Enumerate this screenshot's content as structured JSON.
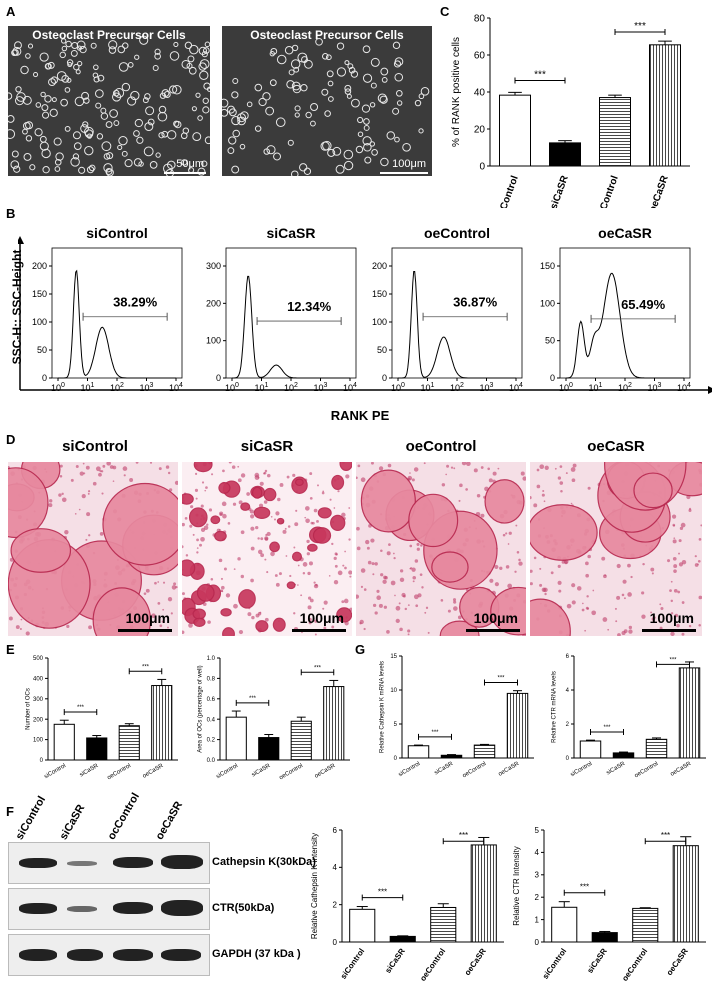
{
  "panels": {
    "A": "A",
    "B": "B",
    "C": "C",
    "D": "D",
    "E": "E",
    "F": "F",
    "G": "G"
  },
  "panelA": {
    "images": [
      {
        "title": "Osteoclast Precursor Cells",
        "scale": "50μm"
      },
      {
        "title": "Osteoclast Precursor Cells",
        "scale": "100μm"
      }
    ]
  },
  "panelB": {
    "y_label": "SSC-H:: SSC-Height",
    "x_label": "RANK PE",
    "plots": [
      {
        "title": "siControl",
        "percent": "38.29%",
        "yticks": [
          "0",
          "50",
          "100",
          "150",
          "200"
        ]
      },
      {
        "title": "siCaSR",
        "percent": "12.34%",
        "yticks": [
          "0",
          "100",
          "200",
          "300"
        ]
      },
      {
        "title": "oeControl",
        "percent": "36.87%",
        "yticks": [
          "0",
          "50",
          "100",
          "150",
          "200"
        ]
      },
      {
        "title": "oeCaSR",
        "percent": "65.49%",
        "yticks": [
          "0",
          "50",
          "100",
          "150"
        ]
      }
    ],
    "xtick_base": "10",
    "xtick_exps": [
      "0",
      "1",
      "2",
      "3",
      "4"
    ]
  },
  "panelD": {
    "images": [
      {
        "title": "siControl",
        "scale": "100μm"
      },
      {
        "title": "siCaSR",
        "scale": "100μm"
      },
      {
        "title": "oeControl",
        "scale": "100μm"
      },
      {
        "title": "oeCaSR",
        "scale": "100μm"
      }
    ]
  },
  "panelF": {
    "lanes": [
      "siControl",
      "siCaSR",
      "ocControl",
      "oeCaSR"
    ],
    "rows": [
      {
        "label": "Cathepsin K(30kDa)"
      },
      {
        "label": "CTR(50kDa)"
      },
      {
        "label": "GAPDH  (37 kDa )"
      }
    ]
  },
  "sig": "***",
  "chart_data": [
    {
      "id": "C",
      "type": "bar",
      "categories": [
        "siControl",
        "siCaSR",
        "oeControl",
        "oeCaSR"
      ],
      "values": [
        38.3,
        12.5,
        37.0,
        65.5
      ],
      "errors": [
        1.5,
        1.2,
        1.3,
        2.0
      ],
      "ylabel": "% of RANK positive cells",
      "ylim": [
        0,
        80
      ],
      "yticks": [
        0,
        20,
        40,
        60,
        80
      ],
      "sig": [
        [
          0,
          1
        ],
        [
          2,
          3
        ]
      ]
    },
    {
      "id": "E1",
      "type": "bar",
      "categories": [
        "siControl",
        "siCaSR",
        "oeControl",
        "oeCaSR"
      ],
      "values": [
        175,
        108,
        168,
        365
      ],
      "errors": [
        20,
        12,
        10,
        30
      ],
      "ylabel": "Number of OCs",
      "ylim": [
        0,
        500
      ],
      "yticks": [
        0,
        100,
        200,
        300,
        400,
        500
      ],
      "sig": [
        [
          0,
          1
        ],
        [
          2,
          3
        ]
      ]
    },
    {
      "id": "E2",
      "type": "bar",
      "categories": [
        "siControl",
        "siCaSR",
        "oeControl",
        "oeCaSR"
      ],
      "values": [
        0.42,
        0.22,
        0.38,
        0.72
      ],
      "errors": [
        0.06,
        0.03,
        0.04,
        0.06
      ],
      "ylabel": "Area of OCs (percentage of well)",
      "ylim": [
        0,
        1.0
      ],
      "yticks": [
        0.0,
        0.2,
        0.4,
        0.6,
        0.8,
        1.0
      ],
      "sig": [
        [
          0,
          1
        ],
        [
          2,
          3
        ]
      ]
    },
    {
      "id": "G1",
      "type": "bar",
      "categories": [
        "siControl",
        "siCaSR",
        "oeControl",
        "oeCaSR"
      ],
      "values": [
        1.8,
        0.4,
        1.9,
        9.5
      ],
      "errors": [
        0.1,
        0.1,
        0.1,
        0.4
      ],
      "ylabel": "Relative Cathepsin K mRNA levels",
      "ylim": [
        0,
        15
      ],
      "yticks": [
        0,
        5,
        10,
        15
      ],
      "sig": [
        [
          0,
          1
        ],
        [
          2,
          3
        ]
      ]
    },
    {
      "id": "G2",
      "type": "bar",
      "categories": [
        "siControl",
        "siCaSR",
        "oeControl",
        "oeCaSR"
      ],
      "values": [
        1.0,
        0.3,
        1.1,
        5.3
      ],
      "errors": [
        0.05,
        0.05,
        0.08,
        0.35
      ],
      "ylabel": "Relative CTR mRNA levels",
      "ylim": [
        0,
        6
      ],
      "yticks": [
        0,
        2,
        4,
        6
      ],
      "sig": [
        [
          0,
          1
        ],
        [
          2,
          3
        ]
      ]
    },
    {
      "id": "F1",
      "type": "bar",
      "categories": [
        "siControl",
        "siCaSR",
        "oeControl",
        "oeCaSR"
      ],
      "values": [
        1.75,
        0.3,
        1.85,
        5.2
      ],
      "errors": [
        0.15,
        0.03,
        0.2,
        0.4
      ],
      "ylabel": "Relative Cathepsin K intensity",
      "ylim": [
        0,
        6
      ],
      "yticks": [
        0,
        2,
        4,
        6
      ],
      "sig": [
        [
          0,
          1
        ],
        [
          2,
          3
        ]
      ]
    },
    {
      "id": "F2",
      "type": "bar",
      "categories": [
        "siControl",
        "siCaSR",
        "oeControl",
        "oeCaSR"
      ],
      "values": [
        1.55,
        0.42,
        1.5,
        4.3
      ],
      "errors": [
        0.25,
        0.05,
        0.03,
        0.4
      ],
      "ylabel": "Relative CTR Intensity",
      "ylim": [
        0,
        5
      ],
      "yticks": [
        0,
        1,
        2,
        3,
        4,
        5
      ],
      "sig": [
        [
          0,
          1
        ],
        [
          2,
          3
        ]
      ]
    }
  ]
}
